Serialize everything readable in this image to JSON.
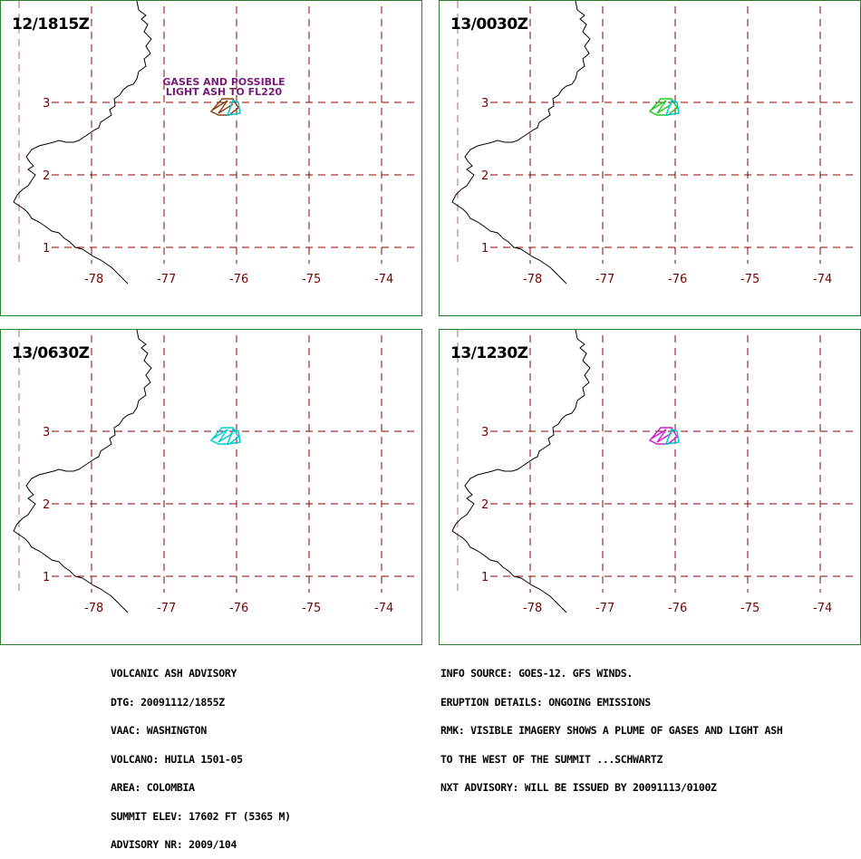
{
  "panels": [
    {
      "time_label": "12/1815Z",
      "plume_colors": [
        "#8b4513",
        "#00c8c8"
      ],
      "note": [
        "GASES AND POSSIBLE",
        "LIGHT ASH TO FL220"
      ]
    },
    {
      "time_label": "13/0030Z",
      "plume_colors": [
        "#22cc22",
        "#00c8c8"
      ],
      "note": []
    },
    {
      "time_label": "13/0630Z",
      "plume_colors": [
        "#00d0d0",
        "#00c8c8"
      ],
      "note": []
    },
    {
      "time_label": "13/1230Z",
      "plume_colors": [
        "#cc22cc",
        "#00c8c8"
      ],
      "note": []
    }
  ],
  "axes": {
    "longitudes": [
      "-78",
      "-77",
      "-76",
      "-75",
      "-74"
    ],
    "latitudes": [
      "3",
      "2",
      "1"
    ]
  },
  "colors": {
    "grid": "#8b0000",
    "border": "#2e7d2e",
    "coastline": "#000000",
    "note_text": "#7a1b7a"
  },
  "advisory_left": [
    "VOLCANIC ASH ADVISORY",
    "DTG: 20091112/1855Z",
    "VAAC: WASHINGTON",
    "VOLCANO: HUILA 1501-05",
    "AREA: COLOMBIA",
    "SUMMIT ELEV: 17602 FT (5365 M)",
    "ADVISORY NR: 2009/104"
  ],
  "advisory_right": [
    "INFO SOURCE: GOES-12. GFS WINDS.",
    "ERUPTION DETAILS: ONGOING EMISSIONS",
    "RMK: VISIBLE IMAGERY SHOWS A PLUME OF GASES AND LIGHT ASH",
    "TO THE WEST OF THE SUMMIT ...SCHWARTZ",
    "NXT ADVISORY: WILL BE ISSUED BY 20091113/0100Z"
  ]
}
